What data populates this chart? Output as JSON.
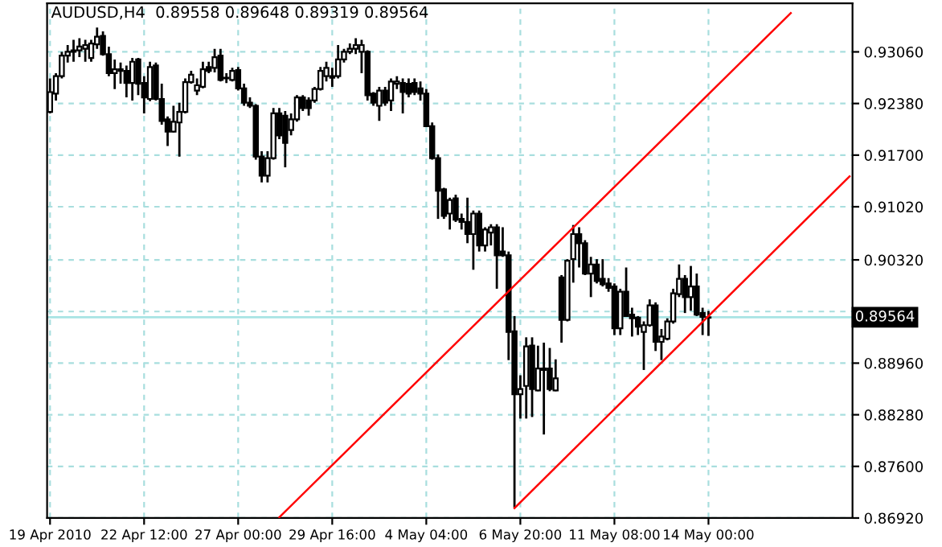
{
  "chart_data": {
    "type": "candlestick",
    "title": "AUDUSD,H4  0.89558 0.89648 0.89319 0.89564",
    "color": "#000000",
    "categories": [
      "19 Apr 2010",
      null,
      null,
      null,
      null,
      null,
      null,
      null,
      null,
      null,
      null,
      null,
      null,
      null,
      null,
      null,
      "22 Apr 12:00",
      null,
      null,
      null,
      null,
      null,
      null,
      null,
      null,
      null,
      null,
      null,
      null,
      null,
      null,
      null,
      "27 Apr 00:00",
      null,
      null,
      null,
      null,
      null,
      null,
      null,
      null,
      null,
      null,
      null,
      null,
      null,
      null,
      null,
      "29 Apr 16:00",
      null,
      null,
      null,
      null,
      null,
      null,
      null,
      null,
      null,
      null,
      null,
      null,
      null,
      null,
      null,
      "4 May 04:00",
      null,
      null,
      null,
      null,
      null,
      null,
      null,
      null,
      null,
      null,
      null,
      null,
      null,
      null,
      null,
      "6 May 20:00",
      null,
      null,
      null,
      null,
      null,
      null,
      null,
      null,
      null,
      null,
      null,
      null,
      null,
      null,
      null,
      "11 May 08:00",
      null,
      null,
      null,
      null,
      null,
      null,
      null,
      null,
      null,
      null,
      null,
      null,
      null,
      null,
      null,
      "14 May 00:00",
      null,
      null,
      null,
      null,
      null,
      null,
      null,
      null,
      null,
      null,
      null,
      null,
      null,
      null,
      null,
      null,
      null,
      null,
      null,
      null,
      null,
      null,
      null,
      null
    ],
    "ohlc": [
      [
        0.9227,
        0.9271,
        0.9225,
        0.9253
      ],
      [
        0.9251,
        0.9278,
        0.9242,
        0.9274
      ],
      [
        0.9274,
        0.9306,
        0.9271,
        0.9301
      ],
      [
        0.9301,
        0.9315,
        0.9292,
        0.9306
      ],
      [
        0.9308,
        0.9322,
        0.9293,
        0.9306
      ],
      [
        0.9308,
        0.9324,
        0.9299,
        0.9313
      ],
      [
        0.931,
        0.9322,
        0.9293,
        0.9315
      ],
      [
        0.9298,
        0.9322,
        0.9293,
        0.9317
      ],
      [
        0.9316,
        0.9338,
        0.931,
        0.9326
      ],
      [
        0.9327,
        0.9333,
        0.9301,
        0.9303
      ],
      [
        0.9303,
        0.9313,
        0.9274,
        0.9278
      ],
      [
        0.9278,
        0.9296,
        0.9257,
        0.9283
      ],
      [
        0.9283,
        0.9292,
        0.9264,
        0.9281
      ],
      [
        0.9281,
        0.9288,
        0.9246,
        0.9265
      ],
      [
        0.9265,
        0.9298,
        0.9242,
        0.9293
      ],
      [
        0.9296,
        0.9298,
        0.9249,
        0.9264
      ],
      [
        0.9265,
        0.9274,
        0.9225,
        0.9246
      ],
      [
        0.9244,
        0.9293,
        0.9241,
        0.9286
      ],
      [
        0.9288,
        0.9292,
        0.9242,
        0.9244
      ],
      [
        0.9244,
        0.9264,
        0.921,
        0.9215
      ],
      [
        0.9217,
        0.9221,
        0.9182,
        0.9201
      ],
      [
        0.9201,
        0.9235,
        0.92,
        0.9214
      ],
      [
        0.9213,
        0.9239,
        0.9168,
        0.9227
      ],
      [
        0.9227,
        0.9271,
        0.9225,
        0.9266
      ],
      [
        0.9266,
        0.9281,
        0.9264,
        0.9276
      ],
      [
        0.9255,
        0.9271,
        0.9249,
        0.9262
      ],
      [
        0.926,
        0.9293,
        0.9258,
        0.9283
      ],
      [
        0.9286,
        0.9293,
        0.9278,
        0.9281
      ],
      [
        0.9285,
        0.931,
        0.9279,
        0.9299
      ],
      [
        0.9301,
        0.931,
        0.9267,
        0.9269
      ],
      [
        0.9272,
        0.9278,
        0.9265,
        0.9271
      ],
      [
        0.9269,
        0.9285,
        0.9267,
        0.9281
      ],
      [
        0.9282,
        0.9286,
        0.9255,
        0.9258
      ],
      [
        0.9258,
        0.9264,
        0.9235,
        0.9239
      ],
      [
        0.9239,
        0.9246,
        0.9232,
        0.9235
      ],
      [
        0.9235,
        0.9237,
        0.9164,
        0.9168
      ],
      [
        0.9168,
        0.9175,
        0.9134,
        0.9143
      ],
      [
        0.9143,
        0.9175,
        0.9134,
        0.9166
      ],
      [
        0.9166,
        0.9232,
        0.9164,
        0.9225
      ],
      [
        0.9225,
        0.9232,
        0.9191,
        0.9196
      ],
      [
        0.9222,
        0.9228,
        0.9154,
        0.9186
      ],
      [
        0.9203,
        0.9225,
        0.9196,
        0.9217
      ],
      [
        0.9217,
        0.9249,
        0.9214,
        0.9246
      ],
      [
        0.9246,
        0.9249,
        0.9228,
        0.9232
      ],
      [
        0.9242,
        0.9246,
        0.9222,
        0.9232
      ],
      [
        0.9242,
        0.926,
        0.9239,
        0.9257
      ],
      [
        0.9257,
        0.9286,
        0.9255,
        0.9281
      ],
      [
        0.9274,
        0.9293,
        0.9267,
        0.9285
      ],
      [
        0.9274,
        0.9285,
        0.926,
        0.9272
      ],
      [
        0.9274,
        0.9315,
        0.9271,
        0.9296
      ],
      [
        0.9296,
        0.931,
        0.9292,
        0.9306
      ],
      [
        0.9306,
        0.9317,
        0.9303,
        0.931
      ],
      [
        0.931,
        0.9324,
        0.9303,
        0.9315
      ],
      [
        0.9306,
        0.9322,
        0.9278,
        0.9315
      ],
      [
        0.9306,
        0.9308,
        0.9242,
        0.9249
      ],
      [
        0.9251,
        0.9253,
        0.9235,
        0.9239
      ],
      [
        0.9235,
        0.926,
        0.9215,
        0.9255
      ],
      [
        0.9255,
        0.926,
        0.9235,
        0.9239
      ],
      [
        0.9242,
        0.9271,
        0.9228,
        0.9267
      ],
      [
        0.9264,
        0.9274,
        0.9257,
        0.9267
      ],
      [
        0.9265,
        0.9271,
        0.9225,
        0.9253
      ],
      [
        0.9264,
        0.9271,
        0.9246,
        0.9251
      ],
      [
        0.9265,
        0.9271,
        0.9249,
        0.9253
      ],
      [
        0.9258,
        0.9267,
        0.9242,
        0.9251
      ],
      [
        0.9251,
        0.9257,
        0.9207,
        0.9208
      ],
      [
        0.9208,
        0.9213,
        0.9164,
        0.9166
      ],
      [
        0.9166,
        0.9171,
        0.9086,
        0.9123
      ],
      [
        0.9125,
        0.9127,
        0.9086,
        0.909
      ],
      [
        0.9093,
        0.9114,
        0.9072,
        0.9111
      ],
      [
        0.9113,
        0.9118,
        0.9082,
        0.9085
      ],
      [
        0.9086,
        0.9093,
        0.9072,
        0.9082
      ],
      [
        0.9082,
        0.9114,
        0.9054,
        0.9066
      ],
      [
        0.9066,
        0.9097,
        0.9019,
        0.9093
      ],
      [
        0.9093,
        0.9097,
        0.9043,
        0.9051
      ],
      [
        0.9051,
        0.9075,
        0.9043,
        0.9072
      ],
      [
        0.9068,
        0.9079,
        0.9051,
        0.9075
      ],
      [
        0.9075,
        0.9079,
        0.8994,
        0.9038
      ],
      [
        0.9043,
        0.9075,
        0.9036,
        0.9038
      ],
      [
        0.9038,
        0.9043,
        0.89,
        0.8937
      ],
      [
        0.8938,
        0.8958,
        0.8706,
        0.8855
      ],
      [
        0.8855,
        0.888,
        0.8823,
        0.8862
      ],
      [
        0.8866,
        0.893,
        0.8823,
        0.8918
      ],
      [
        0.8919,
        0.893,
        0.8825,
        0.8862
      ],
      [
        0.886,
        0.8919,
        0.8859,
        0.8889
      ],
      [
        0.8889,
        0.8923,
        0.8802,
        0.8887
      ],
      [
        0.8889,
        0.8916,
        0.8859,
        0.8862
      ],
      [
        0.886,
        0.8901,
        0.8859,
        0.8876
      ],
      [
        0.9009,
        0.9012,
        0.8923,
        0.8953
      ],
      [
        0.8953,
        0.9033,
        0.8951,
        0.9031
      ],
      [
        0.9033,
        0.9078,
        0.9002,
        0.9066
      ],
      [
        0.9066,
        0.9075,
        0.9022,
        0.9054
      ],
      [
        0.9054,
        0.9058,
        0.9012,
        0.9014
      ],
      [
        0.9014,
        0.9036,
        0.8983,
        0.9026
      ],
      [
        0.9026,
        0.9033,
        0.9001,
        0.9004
      ],
      [
        0.9007,
        0.9033,
        0.8997,
        0.9
      ],
      [
        0.9001,
        0.9008,
        0.899,
        0.8995
      ],
      [
        0.8997,
        0.9001,
        0.8933,
        0.8942
      ],
      [
        0.8942,
        0.8994,
        0.8933,
        0.899
      ],
      [
        0.899,
        0.9022,
        0.8957,
        0.8958
      ],
      [
        0.896,
        0.8969,
        0.8931,
        0.8955
      ],
      [
        0.8956,
        0.8958,
        0.8933,
        0.8944
      ],
      [
        0.8937,
        0.8951,
        0.8887,
        0.8946
      ],
      [
        0.8946,
        0.898,
        0.8944,
        0.8972
      ],
      [
        0.8972,
        0.8976,
        0.8912,
        0.8924
      ],
      [
        0.8924,
        0.8941,
        0.89,
        0.8931
      ],
      [
        0.8928,
        0.8955,
        0.8926,
        0.8951
      ],
      [
        0.8951,
        0.8994,
        0.8948,
        0.8988
      ],
      [
        0.8987,
        0.9026,
        0.8983,
        0.9007
      ],
      [
        0.9007,
        0.9012,
        0.8962,
        0.8983
      ],
      [
        0.8983,
        0.9024,
        0.8965,
        0.8997
      ],
      [
        0.8997,
        0.9014,
        0.8958,
        0.896
      ],
      [
        0.8962,
        0.8969,
        0.8933,
        0.8957
      ],
      [
        0.89558,
        0.89648,
        0.89319,
        0.89564
      ],
      null,
      null,
      null,
      null,
      null,
      null,
      null,
      null,
      null,
      null,
      null,
      null,
      null,
      null,
      null,
      null,
      null,
      null,
      null,
      null,
      null,
      null,
      null,
      null
    ],
    "series": [
      {
        "type": "line",
        "color": "#ff0000",
        "values": [
          null,
          null,
          null,
          null,
          null,
          null,
          null,
          null,
          null,
          null,
          null,
          null,
          null,
          null,
          null,
          null,
          null,
          null,
          null,
          null,
          null,
          null,
          null,
          null,
          null,
          null,
          null,
          null,
          null,
          null,
          null,
          null,
          null,
          null,
          null,
          null,
          null,
          null,
          null,
          0.8693,
          null,
          null,
          null,
          null,
          null,
          null,
          null,
          null,
          null,
          null,
          null,
          null,
          null,
          null,
          null,
          null,
          null,
          null,
          null,
          null,
          null,
          null,
          null,
          null,
          null,
          null,
          null,
          null,
          null,
          null,
          null,
          null,
          null,
          null,
          null,
          null,
          null,
          null,
          null,
          null,
          null,
          null,
          null,
          null,
          null,
          null,
          null,
          null,
          null,
          null,
          null,
          null,
          null,
          null,
          null,
          null,
          null,
          null,
          null,
          null,
          null,
          null,
          null,
          null,
          null,
          null,
          null,
          null,
          null,
          null,
          null,
          null,
          null,
          null,
          null,
          null,
          null,
          null,
          null,
          null,
          null,
          null,
          null,
          null,
          null,
          null,
          0.9357,
          null,
          null,
          null,
          null,
          null,
          null,
          null,
          null,
          null,
          null
        ]
      },
      {
        "type": "line",
        "color": "#ff0000",
        "values": [
          null,
          null,
          null,
          null,
          null,
          null,
          null,
          null,
          null,
          null,
          null,
          null,
          null,
          null,
          null,
          null,
          null,
          null,
          null,
          null,
          null,
          null,
          null,
          null,
          null,
          null,
          null,
          null,
          null,
          null,
          null,
          null,
          null,
          null,
          null,
          null,
          null,
          null,
          null,
          null,
          null,
          null,
          null,
          null,
          null,
          null,
          null,
          null,
          null,
          null,
          null,
          null,
          null,
          null,
          null,
          null,
          null,
          null,
          null,
          null,
          null,
          null,
          null,
          null,
          null,
          null,
          null,
          null,
          null,
          null,
          null,
          null,
          null,
          null,
          null,
          null,
          null,
          null,
          null,
          0.8705,
          null,
          null,
          null,
          null,
          null,
          null,
          null,
          null,
          null,
          null,
          null,
          null,
          null,
          null,
          null,
          null,
          null,
          null,
          null,
          null,
          null,
          null,
          null,
          null,
          null,
          null,
          null,
          null,
          null,
          null,
          null,
          null,
          null,
          null,
          null,
          null,
          null,
          null,
          null,
          null,
          null,
          null,
          null,
          null,
          null,
          null,
          null,
          null,
          null,
          null,
          null,
          null,
          null,
          null,
          null,
          null,
          0.9142
        ]
      }
    ],
    "ylim": [
      0.8692,
      0.937
    ],
    "yticks": [
      {
        "value": 0.8692,
        "label": "0.86920"
      },
      {
        "value": 0.876,
        "label": "0.87600"
      },
      {
        "value": 0.8828,
        "label": "0.88280"
      },
      {
        "value": 0.8896,
        "label": "0.88960"
      },
      {
        "value": 0.8964,
        "label": null
      },
      {
        "value": 0.9032,
        "label": "0.90320"
      },
      {
        "value": 0.9102,
        "label": "0.91020"
      },
      {
        "value": 0.917,
        "label": "0.91700"
      },
      {
        "value": 0.9238,
        "label": "0.92380"
      },
      {
        "value": 0.9306,
        "label": "0.93060"
      }
    ],
    "ref_lines": [
      {
        "axis": "y",
        "value": 0.89564,
        "label": "0.89564",
        "color": "#a8e4e4"
      }
    ],
    "grid": true
  }
}
